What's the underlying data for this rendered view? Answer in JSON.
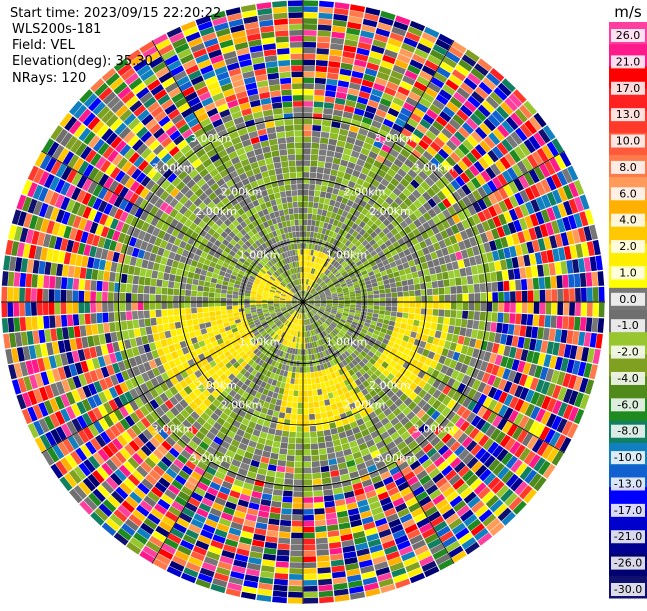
{
  "header": {
    "start_time": "Start time: 2023/09/15 22:20:22",
    "instrument": "WLS200s-181",
    "field": "Field: VEL",
    "elevation": "Elevation(deg): 35.30",
    "nrays": "NRays: 120"
  },
  "chart_data": {
    "type": "heatmap",
    "projection": "polar-ppi",
    "field": "VEL",
    "units": "m/s",
    "range_rings_km": [
      1,
      2,
      3
    ],
    "ring_labels": [
      "1.00km",
      "2.00km",
      "3.00km"
    ],
    "nrays": 120,
    "elevation_deg": 35.3,
    "max_range_km": 5.1,
    "gates_per_ray": 51,
    "inner_zones": [
      {
        "kind": "near-zero-gray-green",
        "range_km": [
          0,
          3.3
        ]
      },
      {
        "kind": "mixed-aliased",
        "range_km": [
          3.3,
          5.1
        ]
      }
    ],
    "yellow_patches": [
      {
        "azimuth_deg": 110,
        "range_km": [
          1.6,
          2.5
        ]
      },
      {
        "azimuth_deg": 245,
        "range_km": [
          1.0,
          2.6
        ]
      },
      {
        "azimuth_deg": 170,
        "range_km": [
          1.2,
          2.2
        ]
      },
      {
        "azimuth_deg": 15,
        "range_km": [
          0.2,
          0.9
        ]
      },
      {
        "azimuth_deg": 290,
        "range_km": [
          0.2,
          0.9
        ]
      },
      {
        "azimuth_deg": 200,
        "range_km": [
          0.2,
          0.8
        ]
      }
    ],
    "colorbar": {
      "title": "m/s",
      "ticks": [
        "26.0",
        "21.0",
        "17.0",
        "13.0",
        "10.0",
        "8.0",
        "6.0",
        "4.0",
        "2.0",
        "1.0",
        "0.0",
        "-1.0",
        "-2.0",
        "-4.0",
        "-6.0",
        "-8.0",
        "-10.0",
        "-13.0",
        "-17.0",
        "-21.0",
        "-26.0",
        "-30.0"
      ],
      "colors": [
        "#ff3fa0",
        "#ff1a8c",
        "#ff0000",
        "#ff2020",
        "#ff3a2a",
        "#ff5a3c",
        "#ff7a4a",
        "#ff9a5a",
        "#ffb000",
        "#ffc800",
        "#ffee00",
        "#ffff00",
        "#777777",
        "#6f6f6f",
        "#97c62f",
        "#7fa020",
        "#4f8a1a",
        "#1f8a1f",
        "#108060",
        "#1080c0",
        "#1060d0",
        "#0000ff",
        "#0000cc",
        "#000090",
        "#000070",
        "#101070"
      ]
    }
  }
}
